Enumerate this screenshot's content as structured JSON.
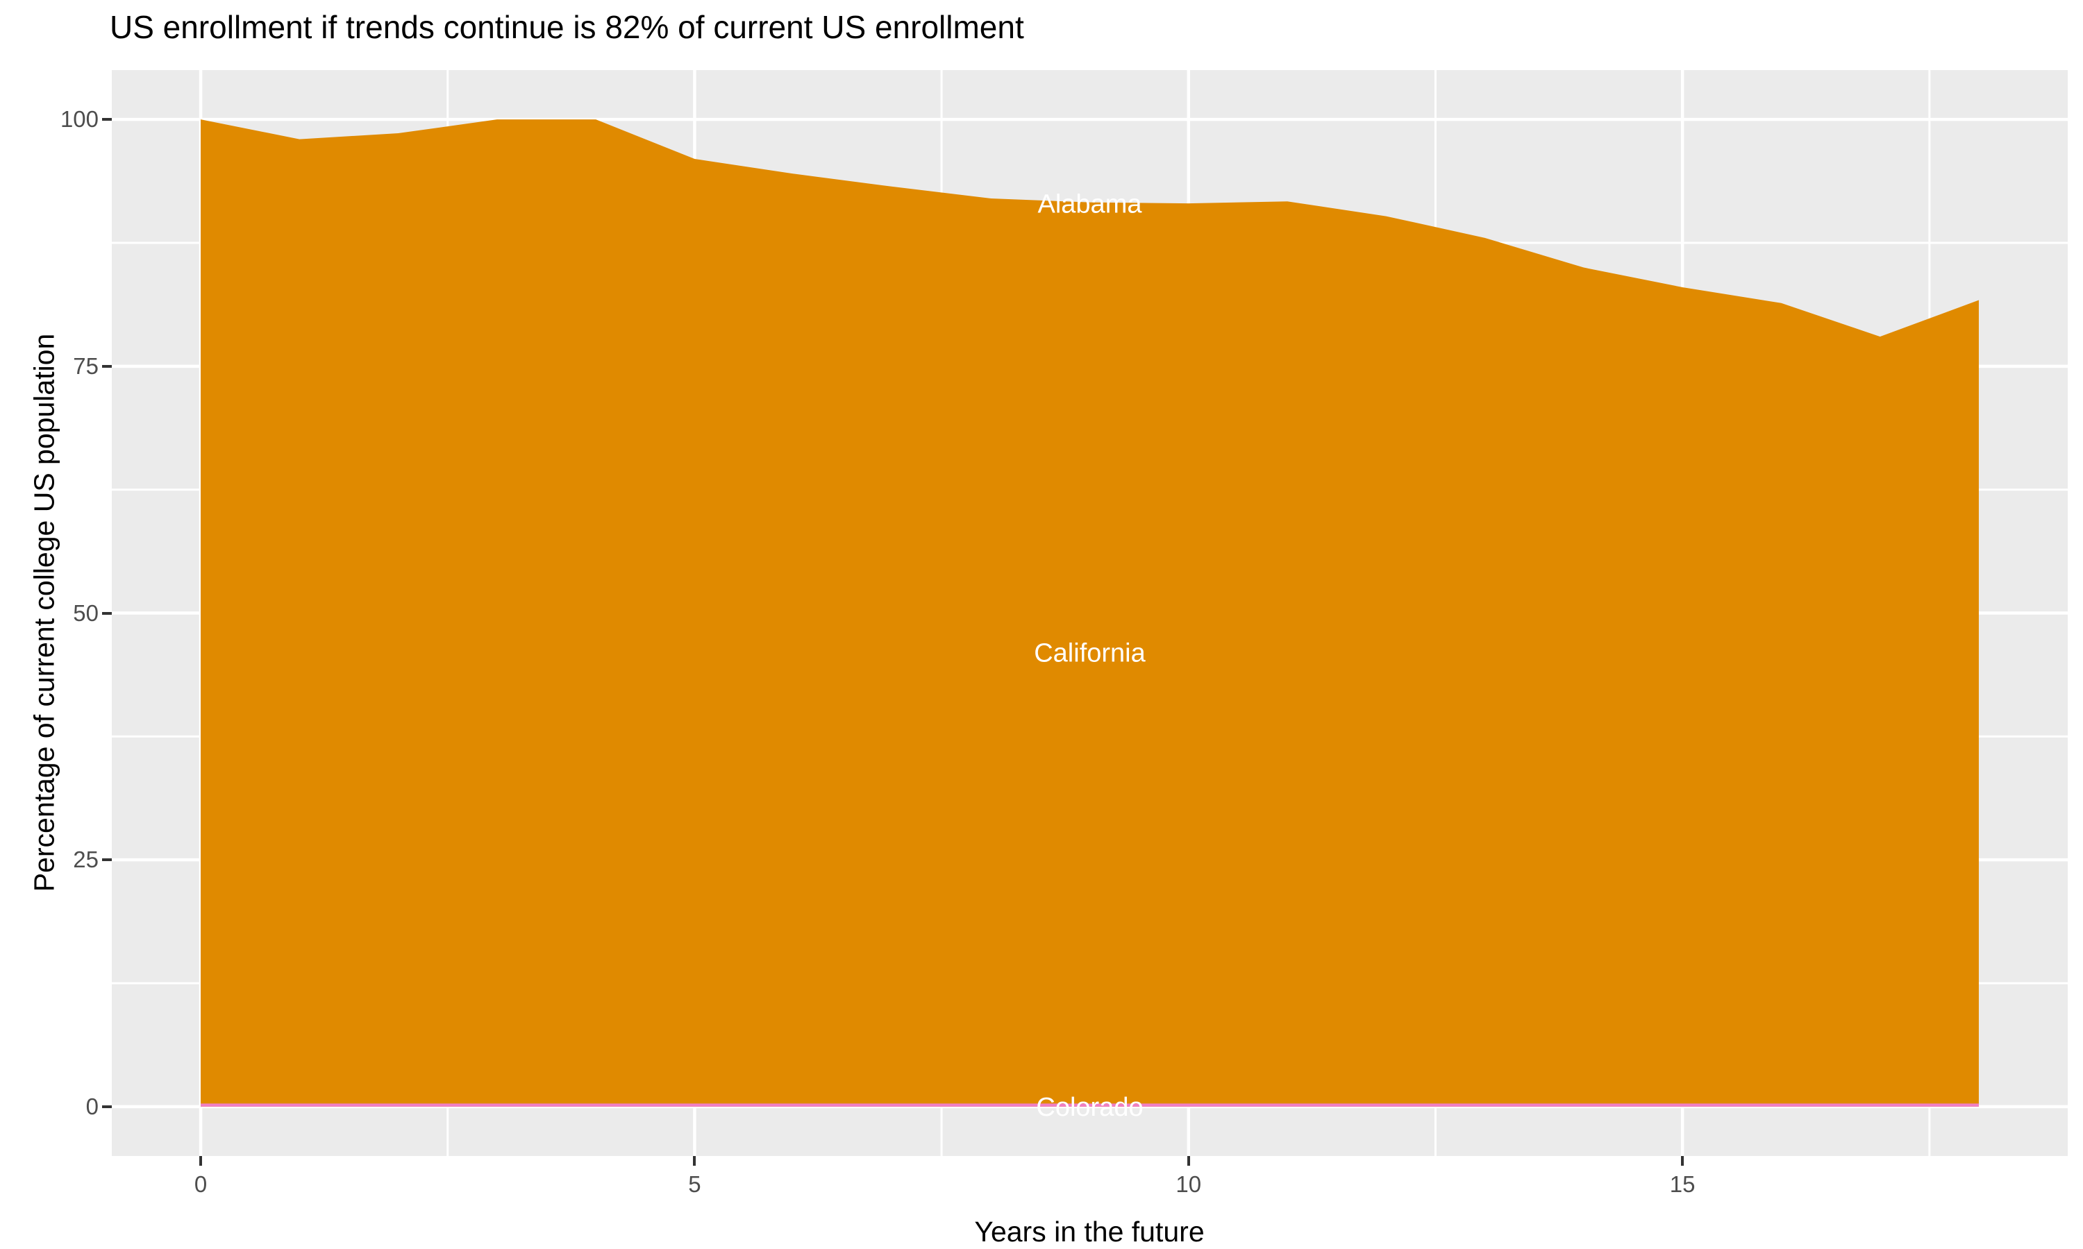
{
  "title": "US enrollment if trends continue is 82% of current US enrollment",
  "chart_data": {
    "type": "area",
    "stacked": true,
    "title": "US enrollment if trends continue is 82% of current US enrollment",
    "xlabel": "Years in the future",
    "ylabel": "Percentage of current college US population",
    "x": [
      0,
      1,
      2,
      3,
      4,
      5,
      6,
      7,
      8,
      9,
      10,
      11,
      12,
      13,
      14,
      15,
      16,
      17,
      18
    ],
    "stacked_top_values": [
      100,
      98,
      98.6,
      100,
      100,
      96,
      94.5,
      93.2,
      92,
      91.6,
      91.5,
      91.7,
      90.2,
      88,
      85,
      83,
      81.4,
      78,
      81.7
    ],
    "series": [
      {
        "name": "Alabama",
        "role": "top-sliver",
        "label": {
          "x": 9,
          "y": 91.5
        }
      },
      {
        "name": "California",
        "role": "dominant-band",
        "label": {
          "x": 9,
          "y": 46
        }
      },
      {
        "name": "Colorado",
        "role": "bottom-sliver",
        "label": {
          "x": 9,
          "y": 0
        }
      }
    ],
    "x_ticks": [
      0,
      5,
      10,
      15
    ],
    "y_ticks": [
      0,
      25,
      50,
      75,
      100
    ],
    "x_minor_ticks": [
      2.5,
      7.5,
      12.5,
      17.5
    ],
    "y_minor_ticks": [
      12.5,
      37.5,
      62.5,
      87.5
    ],
    "xlim": [
      -0.9,
      18.9
    ],
    "ylim": [
      -5,
      105
    ],
    "grid": true,
    "legend": "none",
    "colors": {
      "area": "#E08A00",
      "bottom_strip": "#F07FC5",
      "panel_bg": "#EBEBEB",
      "gridline": "#FFFFFF",
      "tick_text": "#4D4D4D",
      "tick_mark": "#333333",
      "band_label_text": "#FFFFFF",
      "title_text": "#000000"
    }
  }
}
